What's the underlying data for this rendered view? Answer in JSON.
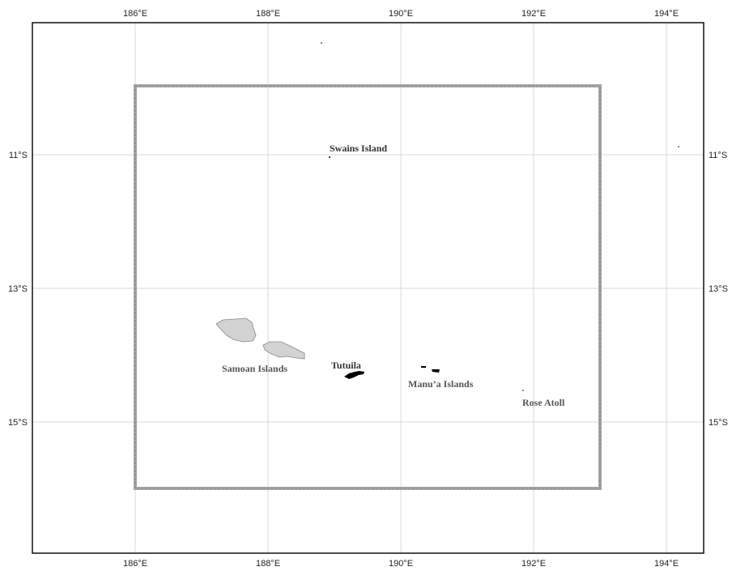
{
  "map": {
    "lon_ticks": [
      "186°E",
      "188°E",
      "190°E",
      "192°E",
      "194°E"
    ],
    "lat_ticks": [
      "11°S",
      "13°S",
      "15°S"
    ],
    "places": {
      "swains": "Swains Island",
      "samoan": "Samoan Islands",
      "tutuila": "Tutuila",
      "manua": "Manu’a Islands",
      "rose": "Rose Atoll"
    },
    "colors": {
      "frame": "#000000",
      "grid": "#d9d9d9",
      "study_area": "#a6a6a6",
      "samoa_fill": "#d3d3d3",
      "american_samoa_fill": "#000000",
      "label_dark": "#333333",
      "label_gray": "#555555"
    }
  }
}
